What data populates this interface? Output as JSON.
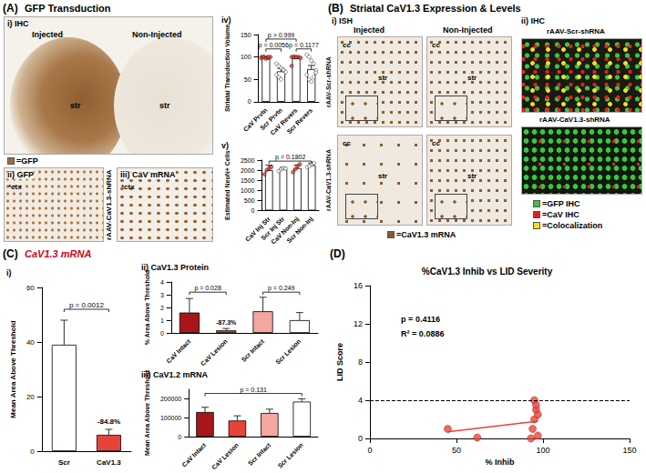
{
  "chart_data": [
    {
      "type": "bar",
      "title": "iv)",
      "y_label": "Striatal Transduction Volume",
      "categories": [
        "CaV Prvtn",
        "Scr Prvtn",
        "CaV Revers",
        "Scr Revers"
      ],
      "values": [
        98,
        68,
        97,
        73
      ],
      "errors": [
        2,
        6,
        3,
        8
      ],
      "colors": [
        "#ffffff",
        "#ffffff",
        "#ffffff",
        "#ffffff"
      ],
      "points": [
        {
          "color": "#e8433a",
          "values": [
            100,
            100,
            99,
            98,
            100,
            97,
            100,
            96,
            100
          ]
        },
        {
          "color": "#ffffff",
          "values": [
            85,
            80,
            75,
            70,
            66,
            60,
            55,
            50,
            72
          ]
        },
        {
          "color": "#e8433a",
          "values": [
            100,
            100,
            99,
            100,
            98,
            80,
            100,
            100
          ]
        },
        {
          "color": "#ffffff",
          "values": [
            105,
            100,
            92,
            85,
            70,
            60,
            50,
            45,
            55,
            65
          ]
        }
      ],
      "ylim": [
        0,
        150
      ],
      "yticks": [
        0,
        50,
        100,
        150
      ],
      "grid": false,
      "annotations": [
        {
          "text": "p > 0.999",
          "from": 0,
          "to": 2,
          "y": 140
        },
        {
          "text": "p = 0.0056",
          "from": 0,
          "to": 1,
          "y": 118
        },
        {
          "text": "p = 0.1177",
          "from": 2,
          "to": 3,
          "y": 118
        }
      ]
    },
    {
      "type": "bar",
      "title": "v)",
      "y_label": "Estimated NeuN+ Cells",
      "categories": [
        "CaV Inj Str",
        "Scr Inj Str",
        "CaV Non-Inj",
        "Scr Non-Inj"
      ],
      "values": [
        2000,
        2050,
        2100,
        2250
      ],
      "errors": [
        250,
        80,
        150,
        100
      ],
      "colors": [
        "#ffffff",
        "#ffffff",
        "#ffffff",
        "#ffffff"
      ],
      "points": [
        {
          "color": "#e8433a",
          "values": [
            1800,
            2000,
            2100,
            2150
          ]
        },
        {
          "color": "#ffffff",
          "values": [
            1950,
            2050,
            2100,
            2080
          ]
        },
        {
          "color": "#e8433a",
          "values": [
            1900,
            2050,
            2200,
            2300
          ]
        },
        {
          "color": "#ffffff",
          "values": [
            2150,
            2200,
            2300,
            2350
          ]
        }
      ],
      "ylim": [
        0,
        2500
      ],
      "yticks": [
        0,
        500,
        1000,
        1500,
        2000,
        2500
      ],
      "grid": false,
      "annotations": [
        {
          "text": "p = 0.1802",
          "from": 0,
          "to": 3,
          "y": 2450
        }
      ]
    },
    {
      "type": "bar",
      "title": "i)",
      "y_label": "Mean Area Above Threshold",
      "categories": [
        "Scr",
        "CaV1.3"
      ],
      "values": [
        39,
        6
      ],
      "errors": [
        9,
        2
      ],
      "colors": [
        "#ffffff",
        "#e8433a"
      ],
      "ylim": [
        0,
        60
      ],
      "yticks": [
        0,
        20,
        40,
        60
      ],
      "grid": false,
      "annotations": [
        {
          "text": "p = 0.0012",
          "from": 0,
          "to": 1,
          "y": 52
        },
        {
          "text": "-84.8%",
          "x": 1,
          "y": 11
        }
      ]
    },
    {
      "type": "bar",
      "title": "ii) CaV1.3 Protein",
      "y_label": "% Area Above Threshold",
      "categories": [
        "CaV Intact",
        "CaV Lesion",
        "Scr Intact",
        "Scr Lesion"
      ],
      "values": [
        1.6,
        0.2,
        1.7,
        1.0
      ],
      "errors": [
        1.1,
        0.15,
        1.1,
        0.6
      ],
      "colors": [
        "#a8161b",
        "#e8433a",
        "#f4a6a0",
        "#ffffff"
      ],
      "ylim": [
        0,
        4
      ],
      "yticks": [
        0,
        1,
        2,
        3,
        4
      ],
      "grid": false,
      "annotations": [
        {
          "text": "p = 0.028",
          "from": 0,
          "to": 1,
          "y": 3.2
        },
        {
          "text": "p = 0.249",
          "from": 2,
          "to": 3,
          "y": 3.2
        },
        {
          "text": "-87.3%",
          "x": 1,
          "y": 0.8
        }
      ]
    },
    {
      "type": "bar",
      "title": "iii) CaV1.2 mRNA",
      "y_label": "Mean Area Above Threshold",
      "categories": [
        "CaV Intact",
        "CaV Lesion",
        "Scr Intact",
        "Scr Lesion"
      ],
      "values": [
        130000,
        85000,
        125000,
        185000
      ],
      "errors": [
        25000,
        25000,
        20000,
        15000
      ],
      "colors": [
        "#a8161b",
        "#e8433a",
        "#f4a6a0",
        "#ffffff"
      ],
      "ylim": [
        0,
        250000
      ],
      "yticks": [
        0,
        100000,
        200000
      ],
      "grid": false,
      "annotations": [
        {
          "text": "p = 0.131",
          "from": 0,
          "to": 3,
          "y": 228000
        }
      ]
    },
    {
      "type": "scatter",
      "title": "%CaV1.3 Inhib vs LID Severity",
      "x_label": "% Inhib",
      "y_label": "LID Score",
      "x": [
        45,
        62,
        93,
        94,
        95,
        95,
        96,
        96,
        97,
        97
      ],
      "values": [
        1,
        0.1,
        0,
        1,
        2,
        4,
        3,
        3.5,
        2.5,
        0.3
      ],
      "color": "#e8433a",
      "marker": "circle",
      "xlim": [
        0,
        150
      ],
      "xticks": [
        0,
        50,
        100,
        150
      ],
      "ylim": [
        0,
        16
      ],
      "yticks": [
        0,
        4,
        8,
        12,
        16
      ],
      "grid": false,
      "fit": {
        "x": [
          45,
          97
        ],
        "y": [
          0.7,
          1.8
        ],
        "color": "#e8433a"
      },
      "reference_line": {
        "y": 4,
        "line_style": "dashed"
      },
      "annotations": [
        {
          "text": "p = 0.4116",
          "x": 18,
          "y": 12.5
        },
        {
          "text": "R² = 0.0886",
          "x": 18,
          "y": 11
        }
      ]
    }
  ],
  "figure": {
    "panels": [
      {
        "label": "(A)",
        "title": "GFP Transduction"
      },
      {
        "label": "(B)",
        "title": "Striatal CaV1.3 Expression & Levels"
      },
      {
        "label": "(C)",
        "title": "CaV1.3 mRNA"
      },
      {
        "label": "(D)"
      }
    ],
    "images": [
      {
        "label": "i) IHC",
        "texts": [
          "Injected",
          "Non-Injected",
          "str",
          "str"
        ],
        "legend": [
          {
            "color": "#9c6b3c",
            "text": "=GFP"
          }
        ]
      },
      {
        "label": "ii) GFP",
        "texts": [
          "*ctx"
        ]
      },
      {
        "label": "iii) CaV mRNA",
        "texts": [
          "*ctx"
        ],
        "side_label": "rAAV-CaV1.3-shRNA"
      },
      {
        "label": "i) ISH",
        "columns": [
          "Injected",
          "Non-Injected"
        ],
        "rows": [
          "rAAV-Scr-shRNA",
          "rAAV-CaV1.3-shRNA"
        ],
        "texts": [
          "cc",
          "str"
        ],
        "legend": [
          {
            "color": "#8b5a2b",
            "text": "=CaV1.3 mRNA"
          }
        ]
      },
      {
        "label": "ii) IHC",
        "rows": [
          "rAAV-Scr-shRNA",
          "rAAV-CaV1.3-shRNA"
        ],
        "legend": [
          {
            "color": "#3ec43e",
            "text": "=GFP IHC"
          },
          {
            "color": "#e02020",
            "text": "=CaV IHC"
          },
          {
            "color": "#f0e020",
            "text": "=Colocalization"
          }
        ]
      }
    ]
  }
}
